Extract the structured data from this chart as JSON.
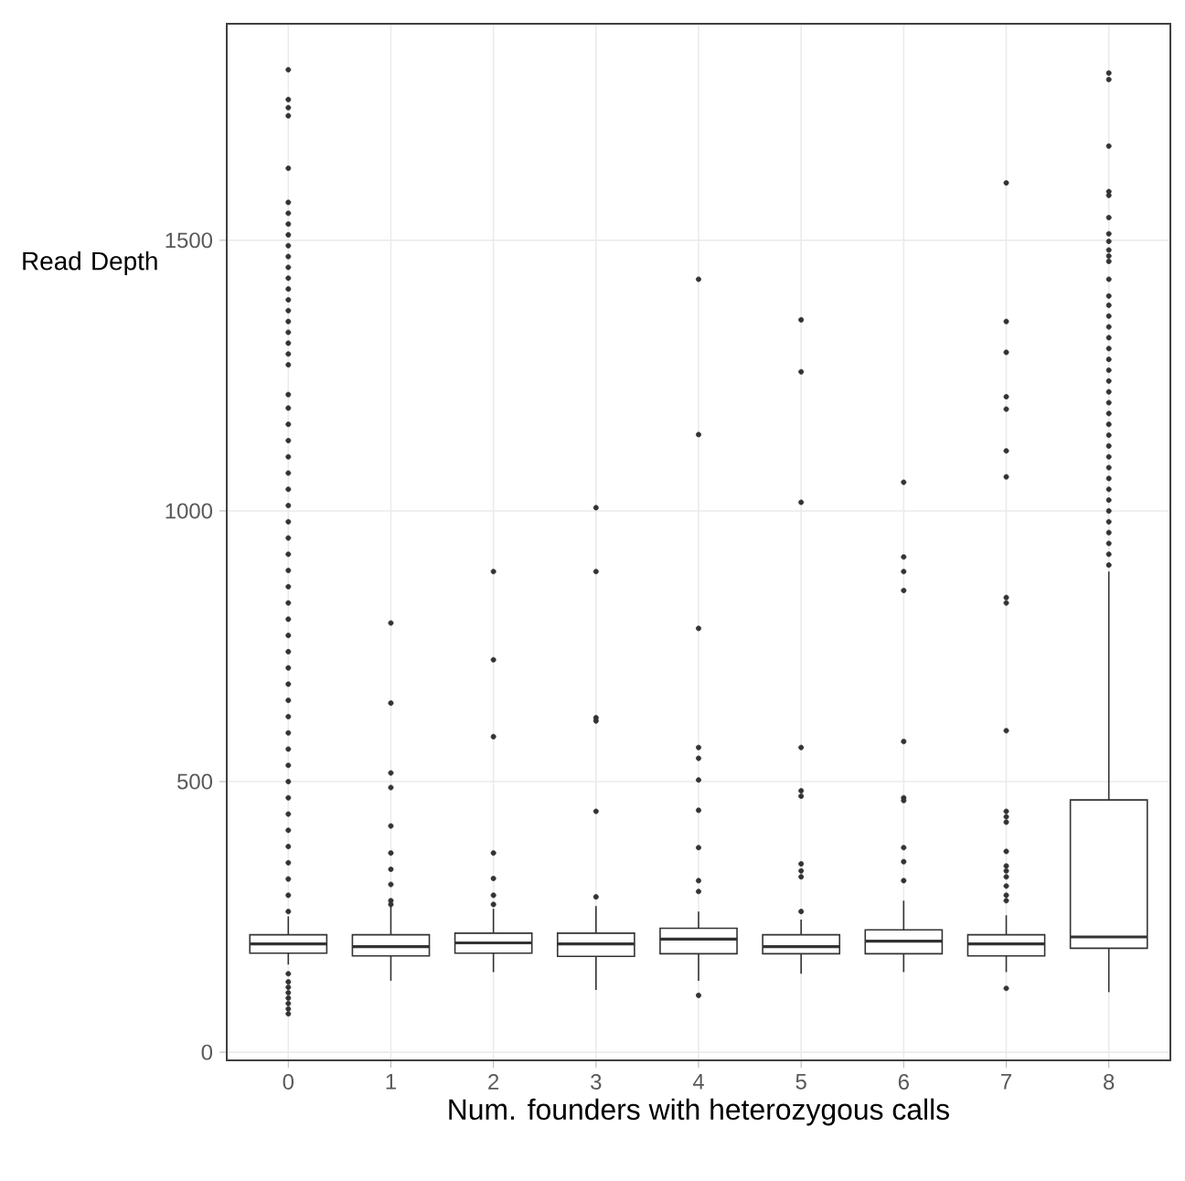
{
  "chart_data": {
    "type": "box",
    "xlabel": "Num. founders with heterozygous calls",
    "ylabel": "Read Depth",
    "categories": [
      "0",
      "1",
      "2",
      "3",
      "4",
      "5",
      "6",
      "7",
      "8"
    ],
    "boxes": [
      {
        "low": 162,
        "q1": 183,
        "median": 200,
        "q3": 217,
        "high": 251,
        "outliers": [
          1815,
          1760,
          1745,
          1730,
          1633,
          1570,
          1550,
          1530,
          1510,
          1490,
          1470,
          1450,
          1430,
          1410,
          1390,
          1370,
          1350,
          1330,
          1310,
          1290,
          1270,
          1215,
          1190,
          1160,
          1130,
          1100,
          1070,
          1040,
          1010,
          980,
          950,
          920,
          890,
          860,
          830,
          800,
          770,
          740,
          710,
          680,
          650,
          620,
          590,
          560,
          530,
          500,
          470,
          440,
          410,
          380,
          350,
          320,
          290,
          260,
          145,
          130,
          120,
          110,
          100,
          90,
          80,
          71
        ]
      },
      {
        "low": 132,
        "q1": 178,
        "median": 195,
        "q3": 217,
        "high": 270,
        "outliers": [
          793,
          645,
          516,
          489,
          418,
          368,
          338,
          310,
          280,
          273
        ]
      },
      {
        "low": 148,
        "q1": 183,
        "median": 202,
        "q3": 220,
        "high": 265,
        "outliers": [
          888,
          725,
          583,
          368,
          321,
          290,
          273
        ]
      },
      {
        "low": 115,
        "q1": 177,
        "median": 200,
        "q3": 220,
        "high": 270,
        "outliers": [
          1006,
          888,
          618,
          612,
          445,
          287
        ]
      },
      {
        "low": 132,
        "q1": 182,
        "median": 209,
        "q3": 229,
        "high": 260,
        "outliers": [
          1428,
          1141,
          783,
          563,
          543,
          503,
          447,
          378,
          317,
          297,
          105
        ]
      },
      {
        "low": 145,
        "q1": 182,
        "median": 195,
        "q3": 217,
        "high": 245,
        "outliers": [
          1353,
          1257,
          1016,
          563,
          483,
          473,
          348,
          335,
          324,
          260
        ]
      },
      {
        "low": 148,
        "q1": 182,
        "median": 205,
        "q3": 226,
        "high": 280,
        "outliers": [
          1053,
          915,
          888,
          853,
          574,
          470,
          465,
          378,
          352,
          317
        ]
      },
      {
        "low": 148,
        "q1": 178,
        "median": 200,
        "q3": 217,
        "high": 253,
        "outliers": [
          1606,
          1350,
          1293,
          1211,
          1188,
          1111,
          1063,
          840,
          830,
          594,
          445,
          435,
          425,
          371,
          344,
          335,
          324,
          307,
          290,
          280,
          118
        ]
      },
      {
        "low": 111,
        "q1": 192,
        "median": 213,
        "q3": 466,
        "high": 888,
        "outliers": [
          1809,
          1797,
          1674,
          1590,
          1583,
          1542,
          1512,
          1498,
          1482,
          1471,
          1461,
          1428,
          1397,
          1380,
          1360,
          1340,
          1320,
          1300,
          1280,
          1260,
          1240,
          1220,
          1200,
          1180,
          1160,
          1140,
          1120,
          1100,
          1080,
          1060,
          1040,
          1020,
          1000,
          980,
          960,
          940,
          920,
          900
        ]
      }
    ],
    "ylim": [
      -15,
      1900
    ],
    "yticks": [
      0,
      500,
      1000,
      1500
    ],
    "grid": true
  }
}
